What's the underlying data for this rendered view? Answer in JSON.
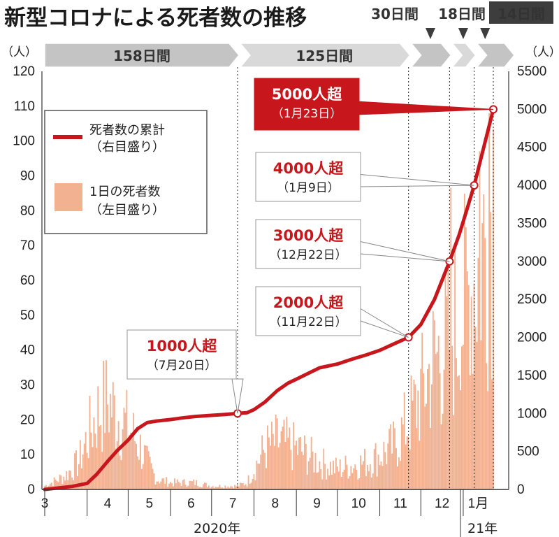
{
  "title": "新型コロナによる死者数の推移",
  "left_unit": "（人）",
  "right_unit": "（人）",
  "year_labels": [
    "2020年",
    "21年"
  ],
  "month_labels": [
    "3",
    "4",
    "5",
    "6",
    "7",
    "8",
    "9",
    "10",
    "11",
    "12",
    "1月"
  ],
  "legend": {
    "cumulative": [
      "死者数の累計",
      "（右目盛り）"
    ],
    "daily": [
      "1日の死者数",
      "（左目盛り）"
    ]
  },
  "colors": {
    "cumulative": "#c8161d",
    "daily": "#f2b191",
    "banner": "#cfcfcf"
  },
  "periods": [
    {
      "label": "158日間",
      "start_day": 0,
      "end_day": 142
    },
    {
      "label": "125日間",
      "start_day": 142,
      "end_day": 267
    },
    {
      "label": "30日間",
      "start_day": 267,
      "end_day": 297
    },
    {
      "label": "18日間",
      "start_day": 297,
      "end_day": 315
    },
    {
      "label": "14日間",
      "start_day": 315,
      "end_day": 329
    }
  ],
  "callouts": [
    {
      "main": "1000人超",
      "sub": "（7月20日）",
      "day": 141,
      "value": 1000,
      "highlight": false
    },
    {
      "main": "2000人超",
      "sub": "（11月22日）",
      "day": 266,
      "value": 2000,
      "highlight": false
    },
    {
      "main": "3000人超",
      "sub": "（12月22日）",
      "day": 296,
      "value": 3000,
      "highlight": false
    },
    {
      "main": "4000人超",
      "sub": "（1月9日）",
      "day": 314,
      "value": 4000,
      "highlight": false
    },
    {
      "main": "5000人超",
      "sub": "（1月23日）",
      "day": 328,
      "value": 5000,
      "highlight": true
    }
  ],
  "chart_data": {
    "type": "bar+line",
    "title": "新型コロナによる死者数の推移",
    "x_axis": {
      "type": "date",
      "start": "2020-03-01",
      "end": "2021-01-23",
      "month_tick_days": [
        0,
        31,
        61,
        92,
        122,
        153,
        184,
        214,
        245,
        275,
        306
      ]
    },
    "left_axis": {
      "label": "（人）",
      "ylim": [
        0,
        120
      ],
      "ticks": [
        0,
        10,
        20,
        30,
        40,
        50,
        60,
        70,
        80,
        90,
        100,
        110,
        120
      ]
    },
    "right_axis": {
      "label": "（人）",
      "ylim": [
        0,
        5500
      ],
      "ticks": [
        0,
        500,
        1000,
        1500,
        2000,
        2500,
        3000,
        3500,
        4000,
        4500,
        5000,
        5500
      ]
    },
    "series": [
      {
        "name": "死者数の累計",
        "axis": "right",
        "kind": "line",
        "points": [
          [
            0,
            0
          ],
          [
            10,
            20
          ],
          [
            20,
            40
          ],
          [
            31,
            80
          ],
          [
            38,
            200
          ],
          [
            46,
            370
          ],
          [
            53,
            510
          ],
          [
            61,
            650
          ],
          [
            68,
            800
          ],
          [
            75,
            880
          ],
          [
            82,
            900
          ],
          [
            92,
            920
          ],
          [
            100,
            940
          ],
          [
            110,
            960
          ],
          [
            122,
            975
          ],
          [
            131,
            985
          ],
          [
            141,
            1000
          ],
          [
            148,
            1010
          ],
          [
            153,
            1050
          ],
          [
            161,
            1150
          ],
          [
            170,
            1300
          ],
          [
            178,
            1400
          ],
          [
            184,
            1450
          ],
          [
            193,
            1530
          ],
          [
            201,
            1600
          ],
          [
            214,
            1650
          ],
          [
            224,
            1710
          ],
          [
            235,
            1770
          ],
          [
            245,
            1830
          ],
          [
            256,
            1920
          ],
          [
            266,
            2000
          ],
          [
            275,
            2170
          ],
          [
            285,
            2500
          ],
          [
            296,
            3000
          ],
          [
            303,
            3350
          ],
          [
            309,
            3700
          ],
          [
            314,
            4000
          ],
          [
            321,
            4500
          ],
          [
            328,
            5000
          ]
        ]
      },
      {
        "name": "1日の死者数",
        "axis": "left",
        "kind": "bar",
        "daily_levels": [
          [
            0,
            1
          ],
          [
            15,
            4
          ],
          [
            25,
            8
          ],
          [
            31,
            15
          ],
          [
            38,
            22
          ],
          [
            46,
            26
          ],
          [
            53,
            22
          ],
          [
            61,
            18
          ],
          [
            68,
            14
          ],
          [
            75,
            8
          ],
          [
            82,
            3
          ],
          [
            92,
            2
          ],
          [
            110,
            2
          ],
          [
            122,
            1
          ],
          [
            141,
            1
          ],
          [
            148,
            2
          ],
          [
            153,
            6
          ],
          [
            161,
            12
          ],
          [
            170,
            14
          ],
          [
            178,
            13
          ],
          [
            184,
            12
          ],
          [
            193,
            10
          ],
          [
            201,
            8
          ],
          [
            214,
            6
          ],
          [
            224,
            7
          ],
          [
            235,
            8
          ],
          [
            245,
            10
          ],
          [
            256,
            13
          ],
          [
            266,
            20
          ],
          [
            275,
            28
          ],
          [
            285,
            38
          ],
          [
            296,
            44
          ],
          [
            303,
            50
          ],
          [
            309,
            56
          ],
          [
            314,
            62
          ],
          [
            321,
            72
          ],
          [
            328,
            92
          ]
        ]
      }
    ]
  }
}
